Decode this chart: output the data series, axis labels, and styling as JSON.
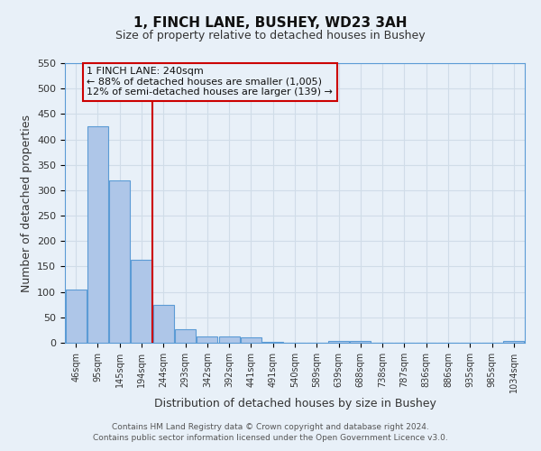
{
  "title": "1, FINCH LANE, BUSHEY, WD23 3AH",
  "subtitle": "Size of property relative to detached houses in Bushey",
  "xlabel": "Distribution of detached houses by size in Bushey",
  "ylabel": "Number of detached properties",
  "bar_labels": [
    "46sqm",
    "95sqm",
    "145sqm",
    "194sqm",
    "244sqm",
    "293sqm",
    "342sqm",
    "392sqm",
    "441sqm",
    "491sqm",
    "540sqm",
    "589sqm",
    "639sqm",
    "688sqm",
    "738sqm",
    "787sqm",
    "836sqm",
    "886sqm",
    "935sqm",
    "985sqm",
    "1034sqm"
  ],
  "bar_values": [
    105,
    425,
    320,
    163,
    75,
    27,
    13,
    13,
    10,
    2,
    0,
    0,
    4,
    4,
    0,
    0,
    0,
    0,
    0,
    0,
    3
  ],
  "bar_color": "#aec6e8",
  "bar_edge_color": "#5b9bd5",
  "grid_color": "#d0dce8",
  "background_color": "#e8f0f8",
  "vline_color": "#cc0000",
  "annotation_text": "1 FINCH LANE: 240sqm\n← 88% of detached houses are smaller (1,005)\n12% of semi-detached houses are larger (139) →",
  "annotation_box_color": "#cc0000",
  "ylim": [
    0,
    550
  ],
  "yticks": [
    0,
    50,
    100,
    150,
    200,
    250,
    300,
    350,
    400,
    450,
    500,
    550
  ],
  "footer_line1": "Contains HM Land Registry data © Crown copyright and database right 2024.",
  "footer_line2": "Contains public sector information licensed under the Open Government Licence v3.0."
}
